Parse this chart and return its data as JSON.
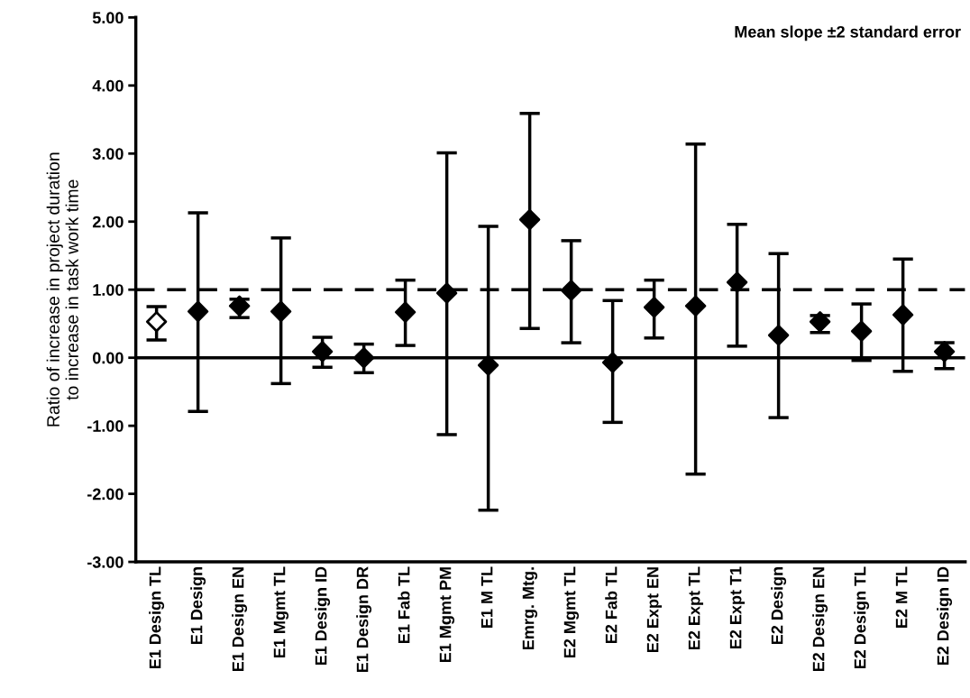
{
  "chart_data": {
    "type": "scatter",
    "ylabel": "Ratio of increase in project duration\nto increase in task work time",
    "annotations": [
      "Mean slope ±2 standard error"
    ],
    "categories": [
      "E1 Design TL",
      "E1 Design",
      "E1 Design EN",
      "E1 Mgmt TL",
      "E1 Design ID",
      "E1 Design DR",
      "E1 Fab TL",
      "E1 Mgmt PM",
      "E1 M TL",
      "Emrg. Mtg.",
      "E2 Mgmt TL",
      "E2 Fab TL",
      "E2 Expt EN",
      "E2 Expt TL",
      "E2 Expt T1",
      "E2 Design",
      "E2 Design EN",
      "E2 Design TL",
      "E2 M TL",
      "E2 Design ID"
    ],
    "series": [
      {
        "color": "#000000",
        "colors": [
          "#ffffff",
          "#000000",
          "#000000",
          "#000000",
          "#000000",
          "#000000",
          "#000000",
          "#000000",
          "#000000",
          "#000000",
          "#000000",
          "#000000",
          "#000000",
          "#000000",
          "#000000",
          "#000000",
          "#000000",
          "#000000",
          "#000000",
          "#000000"
        ],
        "values": [
          0.53,
          0.68,
          0.76,
          0.68,
          0.09,
          0.0,
          0.67,
          0.95,
          -0.11,
          2.03,
          0.99,
          -0.07,
          0.74,
          0.76,
          1.11,
          0.33,
          0.53,
          0.39,
          0.63,
          0.09
        ],
        "errors": [
          [
            0.26,
            0.75
          ],
          [
            -0.79,
            2.13
          ],
          [
            0.59,
            0.86
          ],
          [
            -0.38,
            1.76
          ],
          [
            -0.14,
            0.3
          ],
          [
            -0.22,
            0.2
          ],
          [
            0.18,
            1.14
          ],
          [
            -1.13,
            3.01
          ],
          [
            -2.24,
            1.93
          ],
          [
            0.43,
            3.59
          ],
          [
            0.22,
            1.72
          ],
          [
            -0.95,
            0.84
          ],
          [
            0.29,
            1.14
          ],
          [
            -1.71,
            3.14
          ],
          [
            0.17,
            1.96
          ],
          [
            -0.88,
            1.53
          ],
          [
            0.37,
            0.62
          ],
          [
            -0.04,
            0.79
          ],
          [
            -0.2,
            1.45
          ],
          [
            -0.16,
            0.22
          ]
        ]
      }
    ],
    "marker": "diamond",
    "ylim": [
      -3,
      5
    ],
    "yticks": [
      {
        "value": -3,
        "label": "-3.00"
      },
      {
        "value": -2,
        "label": "-2.00"
      },
      {
        "value": -1,
        "label": "-1.00"
      },
      {
        "value": 0,
        "label": "0.00"
      },
      {
        "value": 1,
        "label": "1.00"
      },
      {
        "value": 2,
        "label": "2.00"
      },
      {
        "value": 3,
        "label": "3.00"
      },
      {
        "value": 4,
        "label": "4.00"
      },
      {
        "value": 5,
        "label": "5.00"
      }
    ],
    "ref_lines": [
      {
        "axis": "y",
        "value": 0,
        "color": "#000000",
        "line_style": "solid"
      },
      {
        "axis": "y",
        "value": 1,
        "color": "#000000",
        "line_style": "dashed"
      }
    ],
    "grid": false,
    "legend": false
  }
}
